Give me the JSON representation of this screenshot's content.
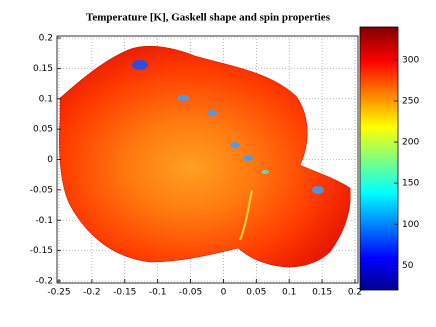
{
  "chart_data": {
    "type": "surface",
    "title": "Temperature [K], Gaskell shape and spin properties",
    "xlim": [
      -0.25,
      0.2
    ],
    "xticks": [
      -0.25,
      -0.2,
      -0.15,
      -0.1,
      -0.05,
      0,
      0.05,
      0.1,
      0.15,
      0.2
    ],
    "ylim": [
      -0.2,
      0.2
    ],
    "yticks": [
      -0.2,
      -0.15,
      -0.1,
      -0.05,
      0,
      0.05,
      0.1,
      0.15,
      0.2
    ],
    "clim": [
      20,
      340
    ],
    "cticks": [
      50,
      100,
      150,
      200,
      250,
      300
    ],
    "grid": true
  }
}
